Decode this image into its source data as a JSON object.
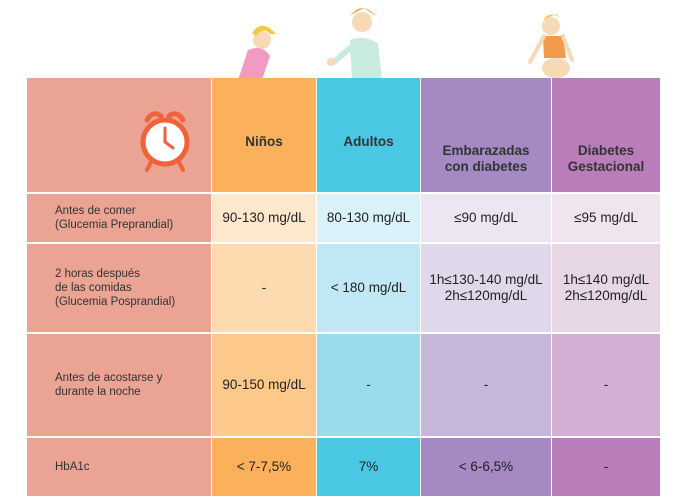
{
  "columns": [
    {
      "key": "ninos",
      "label": "Niños",
      "color_head": "#fbb15b"
    },
    {
      "key": "adultos",
      "label": "Adultos",
      "color_head": "#4ac7e3"
    },
    {
      "key": "embarazadas",
      "label": "Embarazadas\ncon diabetes",
      "color_head": "#a489c3"
    },
    {
      "key": "gestacional",
      "label": "Diabetes\nGestacional",
      "color_head": "#b97eb9"
    }
  ],
  "rows": [
    {
      "label": "Antes de comer\n(Glucemia Preprandial)",
      "values": [
        "90-130 mg/dL",
        "80-130 mg/dL",
        "≤90 mg/dL",
        "≤95 mg/dL"
      ]
    },
    {
      "label": "2 horas después\nde las comidas\n(Glucemia Posprandial)",
      "values": [
        "-",
        "< 180 mg/dL",
        "1h≤130-140 mg/dL\n2h≤120mg/dL",
        "1h≤140 mg/dL\n2h≤120mg/dL"
      ]
    },
    {
      "label": "Antes de acostarse y\ndurante la noche",
      "values": [
        "90-150 mg/dL",
        "-",
        "-",
        "-"
      ]
    },
    {
      "label": "HbA1c",
      "values": [
        "< 7-7,5%",
        "7%",
        "< 6-6,5%",
        "-"
      ]
    }
  ],
  "icons": [
    "alarm-clock-icon",
    "child-with-ball-icon",
    "adult-man-icon",
    "pregnant-woman-icon"
  ]
}
